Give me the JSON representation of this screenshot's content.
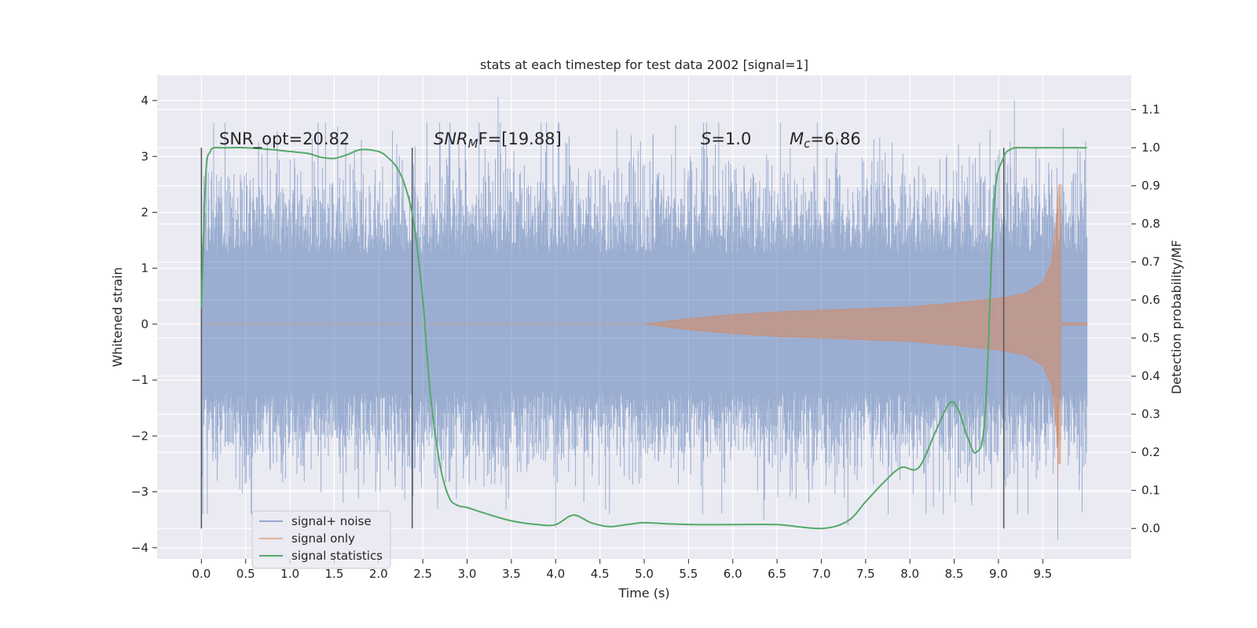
{
  "chart_data": {
    "type": "line",
    "title": "stats at each timestep for test data 2002 [signal=1]",
    "xlabel": "Time (s)",
    "ylabel": "Whitened strain",
    "y2label": "Detection probability/MF",
    "xlim": [
      -0.5,
      10.5
    ],
    "ylim": [
      -4.2,
      4.45
    ],
    "y2lim": [
      -0.08,
      1.19
    ],
    "x_ticks": [
      0.0,
      0.5,
      1.0,
      1.5,
      2.0,
      2.5,
      3.0,
      3.5,
      4.0,
      4.5,
      5.0,
      5.5,
      6.0,
      6.5,
      7.0,
      7.5,
      8.0,
      8.5,
      9.0,
      9.5
    ],
    "x_tick_labels": [
      "0.0",
      "0.5",
      "1.0",
      "1.5",
      "2.0",
      "2.5",
      "3.0",
      "3.5",
      "4.0",
      "4.5",
      "5.0",
      "5.5",
      "6.0",
      "6.5",
      "7.0",
      "7.5",
      "8.0",
      "8.5",
      "9.0",
      "9.5"
    ],
    "y_ticks": [
      4,
      3,
      2,
      1,
      0,
      -1,
      -2,
      -3,
      -4
    ],
    "y_tick_labels": [
      "4",
      "3",
      "2",
      "1",
      "0",
      "−1",
      "−2",
      "−3",
      "−4"
    ],
    "y2_ticks": [
      1.1,
      1.0,
      0.9,
      0.8,
      0.7,
      0.6,
      0.5,
      0.4,
      0.3,
      0.2,
      0.1,
      0.0
    ],
    "y2_tick_labels": [
      "1.1",
      "1.0",
      "0.9",
      "0.8",
      "0.7",
      "0.6",
      "0.5",
      "0.4",
      "0.3",
      "0.2",
      "0.1",
      "0.0"
    ],
    "grid": true,
    "legend_position": "lower-left",
    "annotations": {
      "snr_opt": "SNR_opt=20.82",
      "snr_mf_prefix": "SNR",
      "snr_mf_sub": "M",
      "snr_mf_suffix": "F=[19.88]",
      "s_label": "S",
      "s_value": "=1.0",
      "mc_label": "M",
      "mc_sub": "c",
      "mc_value": "=6.86"
    },
    "vertical_markers_x": [
      0.0,
      2.38,
      9.06
    ],
    "series": [
      {
        "name": "signal+ noise",
        "color": "#4c72b0",
        "axis": "left",
        "x_range": [
          0.0,
          10.0
        ],
        "typical_envelope": [
          -2.2,
          2.3
        ],
        "max_peak": 4.06,
        "min_peak": -3.86
      },
      {
        "name": "signal only",
        "color": "#dd8452",
        "axis": "left",
        "x_range": [
          0.0,
          10.0
        ],
        "envelope": [
          {
            "x": 5.0,
            "a": 0.0
          },
          {
            "x": 5.5,
            "a": 0.1
          },
          {
            "x": 6.0,
            "a": 0.17
          },
          {
            "x": 6.5,
            "a": 0.22
          },
          {
            "x": 7.0,
            "a": 0.25
          },
          {
            "x": 7.5,
            "a": 0.28
          },
          {
            "x": 8.0,
            "a": 0.31
          },
          {
            "x": 8.5,
            "a": 0.38
          },
          {
            "x": 9.0,
            "a": 0.46
          },
          {
            "x": 9.3,
            "a": 0.55
          },
          {
            "x": 9.5,
            "a": 0.75
          },
          {
            "x": 9.6,
            "a": 1.1
          },
          {
            "x": 9.65,
            "a": 1.8
          },
          {
            "x": 9.68,
            "a": 2.5
          }
        ],
        "ringdown_end": 9.7
      },
      {
        "name": "signal statistics",
        "color": "#55a868",
        "axis": "right",
        "x": [
          0.0,
          0.05,
          0.1,
          0.15,
          0.2,
          0.3,
          0.5,
          0.8,
          1.0,
          1.2,
          1.35,
          1.5,
          1.65,
          1.8,
          2.0,
          2.1,
          2.2,
          2.3,
          2.4,
          2.5,
          2.55,
          2.6,
          2.7,
          2.8,
          2.9,
          3.0,
          3.2,
          3.5,
          3.8,
          4.0,
          4.2,
          4.4,
          4.6,
          4.8,
          5.0,
          5.3,
          5.6,
          6.0,
          6.5,
          7.0,
          7.3,
          7.5,
          7.7,
          7.9,
          8.1,
          8.3,
          8.45,
          8.55,
          8.65,
          8.75,
          8.85,
          8.95,
          9.05,
          9.15,
          9.25,
          9.35,
          9.5,
          9.7,
          10.0
        ],
        "values": [
          0.58,
          0.93,
          0.99,
          1.0,
          1.0,
          1.0,
          1.0,
          0.995,
          0.99,
          0.985,
          0.975,
          0.972,
          0.982,
          0.995,
          0.99,
          0.975,
          0.95,
          0.9,
          0.8,
          0.6,
          0.45,
          0.32,
          0.16,
          0.08,
          0.06,
          0.055,
          0.04,
          0.02,
          0.01,
          0.01,
          0.035,
          0.015,
          0.005,
          0.01,
          0.015,
          0.012,
          0.01,
          0.01,
          0.01,
          0.0,
          0.02,
          0.07,
          0.12,
          0.16,
          0.16,
          0.26,
          0.33,
          0.31,
          0.24,
          0.2,
          0.3,
          0.85,
          0.97,
          0.997,
          1.0,
          1.0,
          1.0,
          1.0,
          1.0
        ]
      }
    ]
  }
}
